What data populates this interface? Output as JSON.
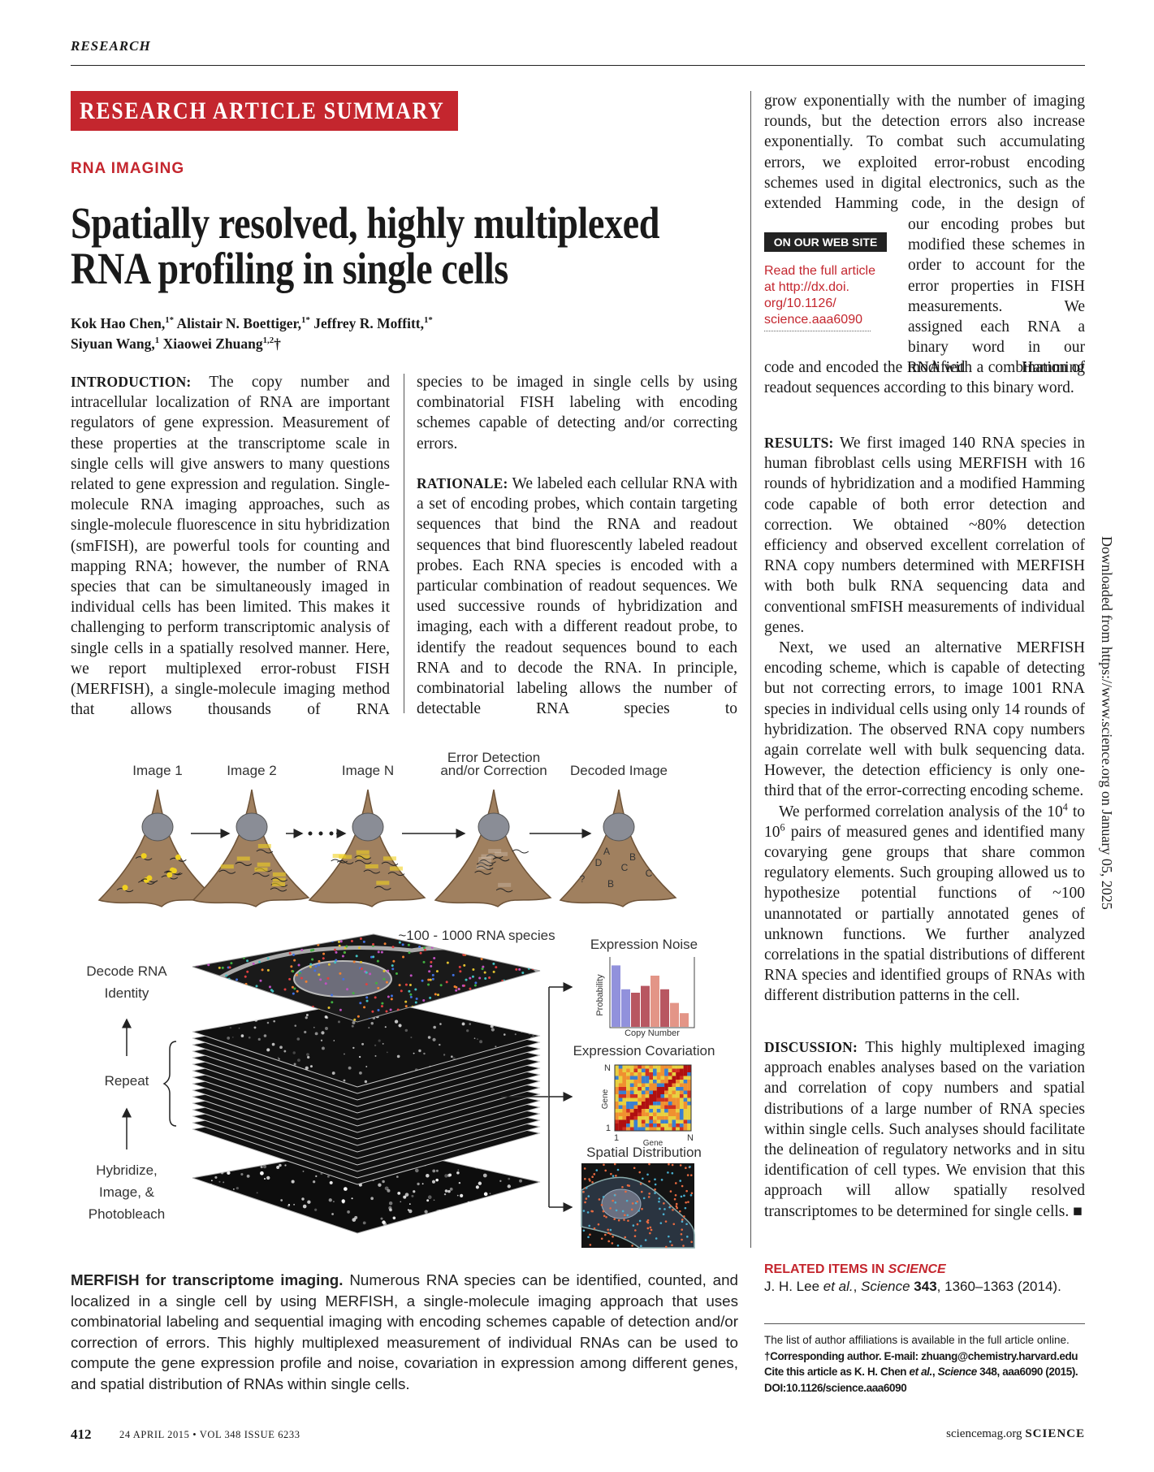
{
  "header": {
    "section": "RESEARCH",
    "banner": "RESEARCH ARTICLE SUMMARY",
    "kicker": "RNA IMAGING",
    "title_lines": [
      "Spatially resolved, highly multiplexed",
      "RNA profiling in single cells"
    ]
  },
  "authors": [
    [
      {
        "text": "Kok Hao Chen,"
      },
      {
        "text": "1*",
        "style": "sup"
      },
      {
        "text": " Alistair N. Boettiger,"
      },
      {
        "text": "1*",
        "style": "sup"
      },
      {
        "text": " Jeffrey R. Moffitt,"
      },
      {
        "text": "1*",
        "style": "sup"
      }
    ],
    [
      {
        "text": "Siyuan Wang,"
      },
      {
        "text": "1",
        "style": "sup"
      },
      {
        "text": " Xiaowei Zhuang"
      },
      {
        "text": "1,2",
        "style": "sup"
      },
      {
        "text": "†"
      }
    ]
  ],
  "introduction": {
    "label": "INTRODUCTION:",
    "parts": [
      "The copy number and intracellular localization of RNA are important regulators of gene expression. Measurement of these properties at the transcriptome scale in single cells will give answers to many questions related to gene expression and regulation. Single-molecule RNA imaging approaches, such as single-molecule fluorescence in situ hybridization (smFISH), are powerful tools for counting and mapping RNA; however, the number of RNA species that can be simultaneously imaged in individual cells has been limited. This makes it challenging to perform transcriptomic analysis of single cells in a spatially resolved manner. Here, we report multiplexed error-robust FISH (MERFISH), a single-molecule imaging method that allows thousands of RNA",
      "species to be imaged in single cells by using combinatorial FISH labeling with encoding schemes capable of detecting and/or correcting errors."
    ]
  },
  "rationale": {
    "label": "RATIONALE:",
    "parts": [
      "We labeled each cellular RNA with a set of encoding probes, which contain targeting sequences that bind the RNA and readout sequences that bind fluorescently labeled readout probes. Each RNA species is encoded with a particular combination of readout sequences. We used successive rounds of hybridization and imaging, each with a different readout probe, to identify the readout sequences bound to each RNA and to decode the RNA. In principle, combinatorial labeling allows the number of detectable RNA species to",
      "grow exponentially with the number of imaging rounds, but the detection errors also increase exponentially. To combat such accumulating errors, we exploited error-robust encoding schemes used in digital electronics, such as the extended Hamming code, in the design of",
      "our encoding probes but modified these schemes in order to account for the error properties in FISH measurements. We assigned each RNA a binary word in our modified Hamming",
      "code and encoded the RNA with a combination of readout sequences according to this binary word."
    ]
  },
  "web_box": {
    "tag": "ON OUR WEB SITE",
    "lines": [
      "Read the full article",
      "at http://dx.doi.",
      "org/10.1126/",
      "science.aaa6090"
    ]
  },
  "results": {
    "label": "RESULTS:",
    "paragraphs": [
      [
        {
          "text": "We first imaged 140 RNA species in human fibroblast cells using MERFISH with 16 rounds of hybridization and a modified Hamming code capable of both error detection and correction. We obtained ~80% detection efficiency and observed excellent correlation of RNA copy numbers determined with MERFISH with both bulk RNA sequencing data and conventional smFISH measurements of individual genes."
        }
      ],
      [
        {
          "text": "Next, we used an alternative MERFISH encoding scheme, which is capable of detecting but not correcting errors, to image 1001 RNA species in individual cells using only 14 rounds of hybridization. The observed RNA copy numbers again correlate well with bulk sequencing data. However, the detection efficiency is only one-third that of the error-correcting encoding scheme."
        }
      ],
      [
        {
          "text": "We performed correlation analysis of the 10"
        },
        {
          "text": "4",
          "style": "sup"
        },
        {
          "text": " to 10"
        },
        {
          "text": "6",
          "style": "sup"
        },
        {
          "text": " pairs of measured genes and identified many covarying gene groups that share common regulatory elements. Such grouping allowed us to hypothesize potential functions of ~100 unannotated or partially annotated genes of unknown functions. We further analyzed correlations in the spatial distributions of different RNA species and identified groups of RNAs with different distribution patterns in the cell."
        }
      ]
    ]
  },
  "discussion": {
    "label": "DISCUSSION:",
    "text": "This highly multiplexed imaging approach enables analyses based on the variation and correlation of copy numbers and spatial distributions of a large number of RNA species within single cells. Such analyses should facilitate the delineation of regulatory networks and in situ identification of cell types. We envision that this approach will allow spatially resolved transcriptomes to be determined for single cells. ■"
  },
  "related": {
    "heading": [
      {
        "text": "RELATED ITEMS IN "
      },
      {
        "text": "SCIENCE",
        "style": "i"
      }
    ],
    "citation": [
      {
        "text": "J. H. Lee "
      },
      {
        "text": "et al.",
        "style": "i"
      },
      {
        "text": ", "
      },
      {
        "text": "Science",
        "style": "i"
      },
      {
        "text": " "
      },
      {
        "text": "343",
        "style": "b"
      },
      {
        "text": ", 1360–1363 (2014)."
      }
    ]
  },
  "notes": [
    [
      {
        "text": "The list of author affiliations is available in the full article online."
      }
    ],
    [
      {
        "text": "†Corresponding author. E-mail: zhuang@chemistry.harvard.edu"
      }
    ],
    [
      {
        "text": "Cite this article as K. H. Chen "
      },
      {
        "text": "et al.",
        "style": "i"
      },
      {
        "text": ", "
      },
      {
        "text": "Science",
        "style": "i"
      },
      {
        "text": " 348, aaa6090 (2015). DOI:10.1126/science.aaa6090"
      }
    ]
  ],
  "figure": {
    "steps": [
      [
        "Image 1"
      ],
      [
        "Image 2"
      ],
      [
        "Image N"
      ],
      [
        "Error Detection",
        "and/or Correction"
      ],
      [
        "Decoded Image"
      ]
    ],
    "decoded_labels": [
      "A",
      "B",
      "D",
      "C",
      "C",
      "?",
      "B"
    ],
    "species_label": "~100 - 1000 RNA species",
    "left_labels": [
      [
        "Decode RNA",
        "Identity"
      ],
      [
        "Repeat"
      ],
      [
        "Hybridize,",
        "Image, &",
        "Photobleach"
      ]
    ],
    "panels": {
      "noise": {
        "title": "Expression Noise",
        "y_label": "Probability",
        "x_label": "Copy Number"
      },
      "covariation": {
        "title": "Expression Covariation",
        "y_label": "Gene",
        "x_label": "Gene",
        "y_top": "N",
        "y_bottom": "1",
        "x_left": "1",
        "x_right": "N"
      },
      "spatial": {
        "title": "Spatial Distribution"
      }
    }
  },
  "caption": {
    "lead": "MERFISH for transcriptome imaging.",
    "text": "Numerous RNA species can be identified, counted, and localized in a single cell by using MERFISH, a single-molecule imaging approach that uses combinatorial labeling and sequential imaging with encoding schemes capable of detection and/or correction of errors. This highly multiplexed measurement of individual RNAs can be used to compute the gene expression profile and noise, covariation in expression among different genes, and spatial distribution of RNAs within single cells."
  },
  "footer": {
    "page": "412",
    "issue": "24 APRIL 2015 • VOL 348 ISSUE 6233",
    "site": "sciencemag.org",
    "journal": "SCIENCE"
  },
  "sidebar": "Downloaded from https://www.science.org on January 05, 2025"
}
